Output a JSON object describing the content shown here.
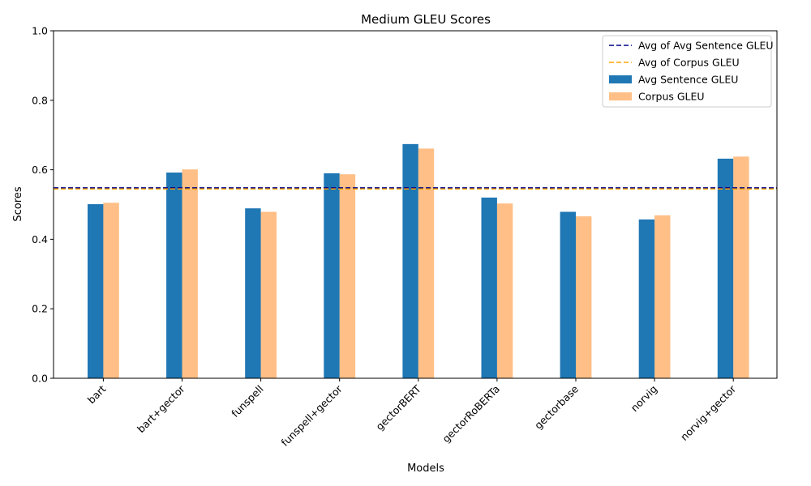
{
  "chart_data": {
    "type": "bar",
    "title": "Medium GLEU Scores",
    "xlabel": "Models",
    "ylabel": "Scores",
    "ylim": [
      0,
      1.0
    ],
    "yticks": [
      "0.0",
      "0.2",
      "0.4",
      "0.6",
      "0.8",
      "1.0"
    ],
    "categories": [
      "bart",
      "bart+gector",
      "funspell",
      "funspell+gector",
      "gectorBERT",
      "gectorRoBERTa",
      "gectorbase",
      "norvig",
      "norvig+gector"
    ],
    "series": [
      {
        "name": "Avg Sentence GLEU",
        "color": "#1f77b4",
        "opacity": 1.0,
        "values": [
          0.501,
          0.592,
          0.489,
          0.59,
          0.674,
          0.52,
          0.479,
          0.457,
          0.632
        ]
      },
      {
        "name": "Corpus GLEU",
        "color": "#ff7f0e",
        "opacity": 0.5,
        "values": [
          0.505,
          0.601,
          0.479,
          0.587,
          0.661,
          0.503,
          0.466,
          0.469,
          0.638
        ]
      }
    ],
    "reference_lines": [
      {
        "name": "Avg of Avg Sentence GLEU",
        "value": 0.548,
        "color": "#00008b",
        "style": "dashed"
      },
      {
        "name": "Avg of Corpus GLEU",
        "value": 0.545,
        "color": "#ffa500",
        "style": "dashed"
      }
    ],
    "legend": {
      "position": "top-right",
      "entries": [
        "Avg of Avg Sentence GLEU",
        "Avg of Corpus GLEU",
        "Avg Sentence GLEU",
        "Corpus GLEU"
      ]
    },
    "grid": false
  }
}
